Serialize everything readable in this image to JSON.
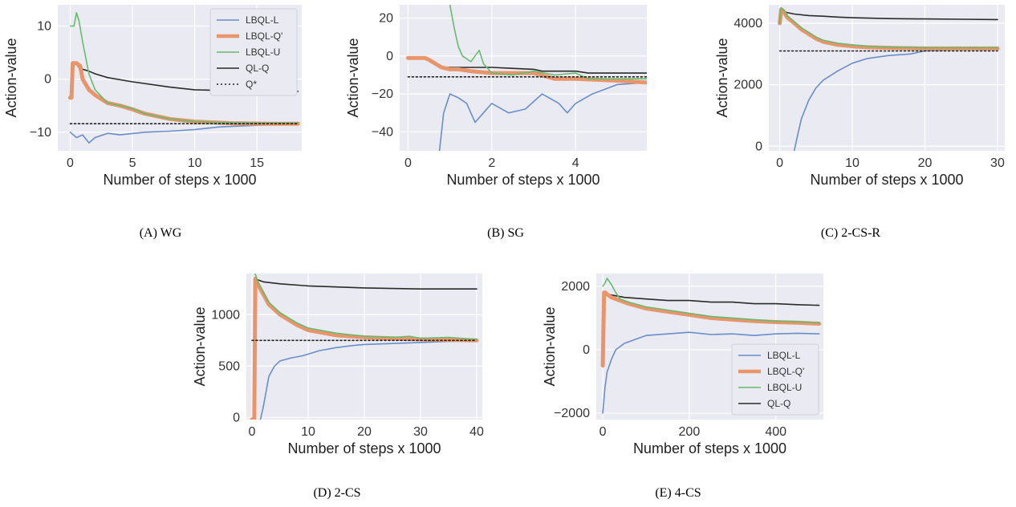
{
  "chart_data": [
    {
      "type": "line",
      "caption": "(A) WG",
      "xlabel": "Number of steps x 1000",
      "ylabel": "Action-value",
      "xlim": [
        -1,
        18.6
      ],
      "ylim": [
        -13.5,
        14
      ],
      "xticks": [
        0,
        5,
        10,
        15
      ],
      "xtick_labels": [
        "0",
        "5",
        "10",
        "15"
      ],
      "yticks": [
        -10,
        0,
        10
      ],
      "ytick_labels": [
        "−10",
        "0",
        "10"
      ],
      "grid": true,
      "legend": "top-right",
      "legend_entries": [
        "LBQL-L",
        "LBQL-Q'",
        "LBQL-U",
        "QL-Q",
        "Q*"
      ],
      "series": [
        {
          "name": "LBQL-L",
          "x": [
            0,
            0.5,
            1,
            1.5,
            2,
            3,
            4,
            6,
            8,
            10,
            12,
            15,
            18.3
          ],
          "y": [
            -10,
            -11,
            -10.5,
            -12,
            -11,
            -10.2,
            -10.5,
            -10,
            -9.8,
            -9.5,
            -9,
            -8.7,
            -8.5
          ]
        },
        {
          "name": "LBQL-Q'",
          "x": [
            0,
            0.1,
            0.2,
            0.3,
            0.5,
            0.8,
            1,
            1.5,
            2,
            3,
            4,
            5,
            6,
            8,
            10,
            13,
            16,
            18.3
          ],
          "y": [
            -3.5,
            -3.5,
            3,
            3,
            3,
            2.5,
            0,
            -2,
            -3,
            -4.5,
            -5,
            -5.7,
            -6.5,
            -7.5,
            -8,
            -8.3,
            -8.4,
            -8.4
          ]
        },
        {
          "name": "LBQL-U",
          "x": [
            0,
            0.3,
            0.5,
            0.7,
            1,
            1.5,
            2,
            3,
            4,
            5,
            6,
            8,
            10,
            13,
            16,
            18.3
          ],
          "y": [
            10,
            10,
            12.5,
            11,
            7,
            1,
            -2,
            -4.5,
            -5,
            -5.5,
            -6.5,
            -7.5,
            -8,
            -8.2,
            -8.3,
            -8.3
          ]
        },
        {
          "name": "QL-Q",
          "x": [
            0,
            0.1,
            0.2,
            0.4,
            0.8,
            1.5,
            2,
            3,
            5,
            8,
            10,
            13,
            16,
            18.3
          ],
          "y": [
            -3.5,
            -3.5,
            3,
            3,
            2,
            1.5,
            1,
            0.3,
            -0.5,
            -1.5,
            -2,
            -2.2,
            -2.3,
            -2.3
          ]
        },
        {
          "name": "Q*",
          "x": [
            0,
            18.3
          ],
          "y": [
            -8.4,
            -8.4
          ]
        }
      ]
    },
    {
      "type": "line",
      "caption": "(B) SG",
      "xlabel": "Number of steps x 1000",
      "ylabel": "Action-value",
      "xlim": [
        -0.2,
        5.7
      ],
      "ylim": [
        -50,
        27
      ],
      "xticks": [
        0,
        2,
        4
      ],
      "xtick_labels": [
        "0",
        "2",
        "4"
      ],
      "yticks": [
        -40,
        -20,
        0,
        20
      ],
      "ytick_labels": [
        "−40",
        "−20",
        "0",
        "20"
      ],
      "grid": true,
      "legend": "none",
      "legend_entries": [],
      "series": [
        {
          "name": "LBQL-L",
          "x": [
            0.75,
            0.85,
            1,
            1.2,
            1.4,
            1.6,
            1.8,
            2,
            2.4,
            2.8,
            3.2,
            3.6,
            3.8,
            4,
            4.4,
            5,
            5.7
          ],
          "y": [
            -50,
            -30,
            -20,
            -22,
            -25,
            -35,
            -30,
            -25,
            -30,
            -28,
            -20,
            -25,
            -30,
            -25,
            -20,
            -15,
            -14
          ]
        },
        {
          "name": "LBQL-Q'",
          "x": [
            0,
            0.4,
            0.5,
            0.8,
            1,
            1.2,
            1.5,
            2,
            3,
            3.5,
            4,
            5,
            5.7
          ],
          "y": [
            -1,
            -1,
            -2,
            -6,
            -7,
            -7,
            -8,
            -9,
            -9,
            -12,
            -12,
            -13,
            -14
          ]
        },
        {
          "name": "LBQL-U",
          "x": [
            1,
            1.1,
            1.2,
            1.3,
            1.5,
            1.6,
            1.7,
            1.8,
            2,
            2.5,
            3,
            3.5,
            4,
            4.3,
            5,
            5.7
          ],
          "y": [
            27,
            15,
            5,
            0,
            -3,
            0,
            3,
            -4,
            -9,
            -10,
            -8,
            -10,
            -9,
            -12,
            -12,
            -12
          ]
        },
        {
          "name": "QL-Q",
          "x": [
            0,
            0.4,
            0.5,
            0.8,
            1,
            1.5,
            2,
            3,
            3.2,
            4,
            4.3,
            5.7
          ],
          "y": [
            -1,
            -1,
            -2,
            -6,
            -6,
            -6,
            -6,
            -7,
            -8,
            -8,
            -9,
            -9
          ]
        },
        {
          "name": "Q*",
          "x": [
            0,
            5.7
          ],
          "y": [
            -11,
            -11
          ]
        }
      ]
    },
    {
      "type": "line",
      "caption": "(C) 2-CS-R",
      "xlabel": "Number of steps x 1000",
      "ylabel": "Action-value",
      "xlim": [
        -1.5,
        31
      ],
      "ylim": [
        -150,
        4600
      ],
      "xticks": [
        0,
        10,
        20,
        30
      ],
      "xtick_labels": [
        "0",
        "10",
        "20",
        "30"
      ],
      "yticks": [
        0,
        2000,
        4000
      ],
      "ytick_labels": [
        "0",
        "2000",
        "4000"
      ],
      "grid": true,
      "legend": "none",
      "legend_entries": [],
      "series": [
        {
          "name": "LBQL-L",
          "x": [
            2,
            2.5,
            3,
            4,
            5,
            6,
            8,
            10,
            12,
            15,
            18,
            20,
            25,
            30
          ],
          "y": [
            -150,
            400,
            900,
            1500,
            1900,
            2150,
            2450,
            2700,
            2850,
            2950,
            3000,
            3100,
            3150,
            3150
          ]
        },
        {
          "name": "LBQL-Q'",
          "x": [
            0,
            0.2,
            0.5,
            1,
            2,
            3,
            4,
            5,
            6,
            8,
            10,
            12,
            15,
            20,
            25,
            30
          ],
          "y": [
            4000,
            4450,
            4400,
            4200,
            4000,
            3800,
            3650,
            3500,
            3400,
            3300,
            3250,
            3220,
            3200,
            3180,
            3180,
            3180
          ]
        },
        {
          "name": "LBQL-U",
          "x": [
            0,
            0.2,
            0.5,
            1,
            2,
            3,
            4,
            5,
            6,
            8,
            10,
            12,
            15,
            20,
            25,
            30
          ],
          "y": [
            4000,
            4500,
            4450,
            4250,
            4050,
            3850,
            3700,
            3550,
            3450,
            3350,
            3300,
            3250,
            3220,
            3200,
            3200,
            3200
          ]
        },
        {
          "name": "QL-Q",
          "x": [
            0,
            0.2,
            0.5,
            1,
            2,
            4,
            6,
            8,
            10,
            15,
            20,
            25,
            30
          ],
          "y": [
            4000,
            4450,
            4400,
            4350,
            4300,
            4250,
            4230,
            4200,
            4180,
            4150,
            4140,
            4130,
            4120
          ]
        },
        {
          "name": "Q*",
          "x": [
            0,
            30
          ],
          "y": [
            3100,
            3100
          ]
        }
      ]
    },
    {
      "type": "line",
      "caption": "(D) 2-CS",
      "xlabel": "Number of steps x 1000",
      "ylabel": "Action-value",
      "xlim": [
        -1,
        41
      ],
      "ylim": [
        -20,
        1400
      ],
      "xticks": [
        0,
        10,
        20,
        30,
        40
      ],
      "xtick_labels": [
        "0",
        "10",
        "20",
        "30",
        "40"
      ],
      "yticks": [
        0,
        500,
        1000
      ],
      "ytick_labels": [
        "0",
        "500",
        "1000"
      ],
      "grid": true,
      "legend": "none",
      "legend_entries": [],
      "series": [
        {
          "name": "LBQL-L",
          "x": [
            1.5,
            2,
            2.5,
            3,
            4,
            5,
            7,
            9,
            12,
            15,
            18,
            20,
            25,
            30,
            35,
            40
          ],
          "y": [
            -20,
            100,
            250,
            400,
            500,
            550,
            580,
            600,
            650,
            680,
            700,
            710,
            720,
            730,
            740,
            750
          ]
        },
        {
          "name": "LBQL-Q'",
          "x": [
            0,
            0.4,
            0.6,
            1,
            2,
            3,
            5,
            8,
            10,
            15,
            20,
            25,
            30,
            35,
            40
          ],
          "y": [
            -20,
            -20,
            1350,
            1300,
            1200,
            1100,
            1000,
            900,
            850,
            800,
            780,
            770,
            760,
            755,
            750
          ]
        },
        {
          "name": "LBQL-U",
          "x": [
            0.5,
            0.7,
            1,
            2,
            3,
            5,
            8,
            10,
            15,
            20,
            25,
            28,
            30,
            35,
            40
          ],
          "y": [
            1400,
            1380,
            1320,
            1220,
            1120,
            1020,
            920,
            870,
            820,
            790,
            780,
            790,
            770,
            780,
            760
          ]
        },
        {
          "name": "QL-Q",
          "x": [
            0,
            0.4,
            0.6,
            1,
            2,
            5,
            10,
            15,
            20,
            25,
            30,
            35,
            40
          ],
          "y": [
            -20,
            -20,
            1350,
            1340,
            1320,
            1300,
            1280,
            1270,
            1260,
            1255,
            1250,
            1250,
            1250
          ]
        },
        {
          "name": "Q*",
          "x": [
            0,
            40
          ],
          "y": [
            750,
            750
          ]
        }
      ]
    },
    {
      "type": "line",
      "caption": "(E) 4-CS",
      "xlabel": "Number of steps x 1000",
      "ylabel": "Action-value",
      "xlim": [
        -15,
        510
      ],
      "ylim": [
        -2200,
        2400
      ],
      "xticks": [
        0,
        200,
        400
      ],
      "xtick_labels": [
        "0",
        "200",
        "400"
      ],
      "yticks": [
        -2000,
        0,
        2000
      ],
      "ytick_labels": [
        "−2000",
        "0",
        "2000"
      ],
      "grid": true,
      "legend": "bottom-right",
      "legend_entries": [
        "LBQL-L",
        "LBQL-Q'",
        "LBQL-U",
        "QL-Q"
      ],
      "series": [
        {
          "name": "LBQL-L",
          "x": [
            0,
            5,
            10,
            20,
            30,
            50,
            80,
            100,
            150,
            200,
            250,
            300,
            350,
            400,
            450,
            500
          ],
          "y": [
            -2000,
            -1200,
            -700,
            -300,
            0,
            200,
            350,
            450,
            500,
            550,
            480,
            500,
            450,
            500,
            520,
            500
          ]
        },
        {
          "name": "LBQL-Q'",
          "x": [
            0,
            3,
            6,
            10,
            20,
            40,
            60,
            100,
            150,
            200,
            250,
            300,
            350,
            400,
            450,
            500
          ],
          "y": [
            -500,
            1800,
            1800,
            1750,
            1650,
            1550,
            1450,
            1300,
            1200,
            1100,
            1000,
            950,
            900,
            870,
            850,
            820
          ]
        },
        {
          "name": "LBQL-U",
          "x": [
            0,
            5,
            10,
            20,
            30,
            40,
            60,
            100,
            150,
            200,
            250,
            300,
            350,
            400,
            450,
            500
          ],
          "y": [
            2000,
            2100,
            2250,
            2050,
            1800,
            1600,
            1500,
            1350,
            1250,
            1150,
            1050,
            1000,
            950,
            900,
            880,
            850
          ]
        },
        {
          "name": "QL-Q",
          "x": [
            0,
            3,
            6,
            10,
            30,
            50,
            100,
            150,
            200,
            250,
            300,
            350,
            400,
            450,
            500
          ],
          "y": [
            -500,
            1800,
            1800,
            1750,
            1700,
            1650,
            1600,
            1550,
            1550,
            1500,
            1500,
            1450,
            1450,
            1420,
            1400
          ]
        }
      ]
    }
  ]
}
